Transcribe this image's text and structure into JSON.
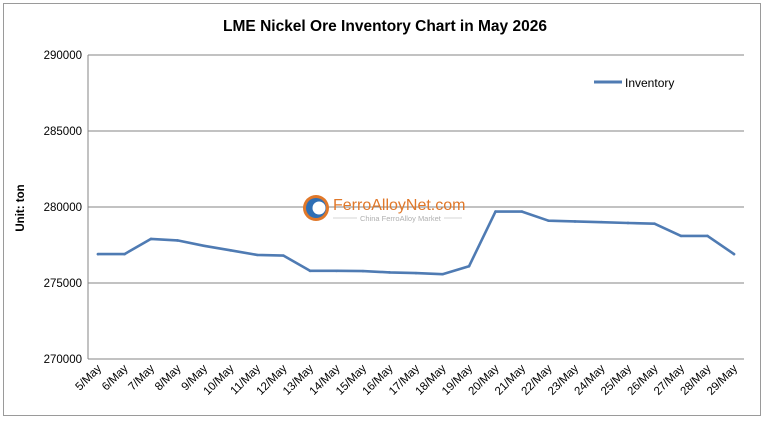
{
  "chart_data": {
    "type": "line",
    "title": "LME Nickel Ore Inventory Chart in May 2026",
    "ylabel": "Unit: ton",
    "xlabel": "",
    "ylim": [
      270000,
      290000
    ],
    "yticks": [
      "270000",
      "275000",
      "280000",
      "285000",
      "290000"
    ],
    "categories": [
      "5/May",
      "6/May",
      "7/May",
      "8/May",
      "9/May",
      "10/May",
      "11/May",
      "12/May",
      "13/May",
      "14/May",
      "15/May",
      "16/May",
      "17/May",
      "18/May",
      "19/May",
      "20/May",
      "21/May",
      "22/May",
      "23/May",
      "24/May",
      "25/May",
      "26/May",
      "27/May",
      "28/May",
      "29/May"
    ],
    "series": [
      {
        "name": "Inventory",
        "color": "#4f7bb3",
        "values": [
          276900,
          276900,
          277900,
          277800,
          277450,
          277150,
          276850,
          276800,
          275800,
          275800,
          275780,
          275700,
          275650,
          275580,
          276100,
          279700,
          279700,
          279100,
          279050,
          279000,
          278950,
          278900,
          278100,
          278100,
          276900
        ]
      }
    ],
    "grid": true,
    "legend_position": "top-right"
  },
  "watermark": {
    "brand": "FerroAlloyNet.com",
    "tagline": "China FerroAlloy Market",
    "logo_icon": "ferroalloynet-logo-icon"
  }
}
